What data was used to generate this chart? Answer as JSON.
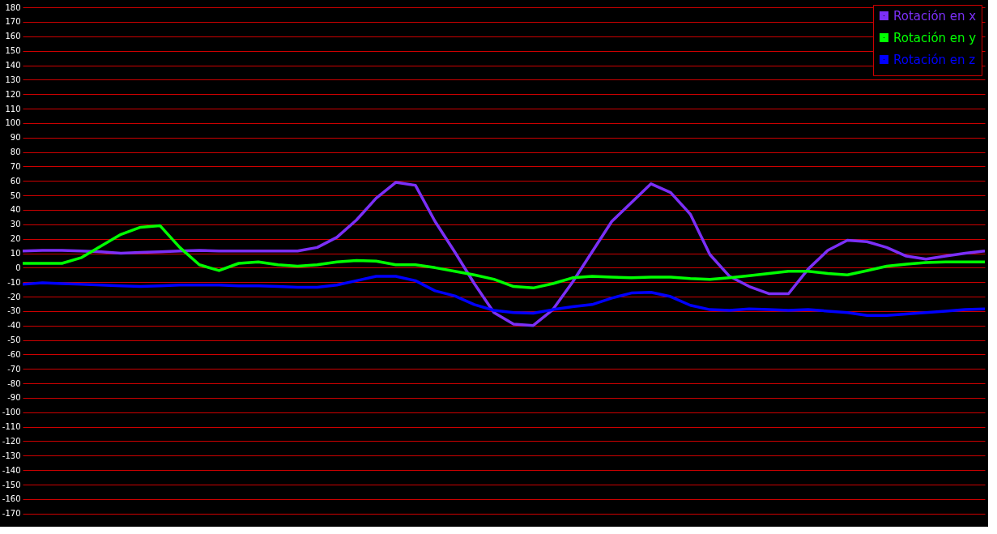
{
  "chart_data": {
    "type": "line",
    "ylim": [
      -178,
      184
    ],
    "categories": [
      null,
      null,
      null,
      null,
      null,
      null,
      null,
      null,
      null,
      null,
      null,
      null,
      null,
      null,
      null,
      null,
      null,
      null,
      null,
      null,
      null,
      null,
      null,
      null,
      null,
      null,
      null,
      null,
      null,
      null,
      null,
      null,
      null,
      null,
      null,
      null,
      null,
      null,
      null,
      null,
      null,
      null,
      null,
      null,
      null,
      null,
      null,
      null,
      null,
      null
    ],
    "yticks": [
      -170,
      -160,
      -150,
      -140,
      -130,
      -120,
      -110,
      -100,
      -90,
      -80,
      -70,
      -60,
      -50,
      -40,
      -30,
      -20,
      -10,
      0,
      10,
      20,
      30,
      40,
      50,
      60,
      70,
      80,
      90,
      100,
      110,
      120,
      130,
      140,
      150,
      160,
      170,
      180
    ],
    "tick_labels": "y",
    "grid": "y",
    "legend": "top right",
    "line_style": "solid",
    "series": [
      {
        "name": "Rotación en x",
        "color": "#7b2ff7",
        "values": [
          11.5,
          12,
          12,
          11.5,
          11,
          10,
          10.5,
          11,
          11.5,
          12,
          11.5,
          11.5,
          11.5,
          11.5,
          11.5,
          14,
          21,
          33,
          48,
          59,
          57,
          32,
          11,
          -11,
          -31,
          -39,
          -40,
          -29,
          -10,
          11,
          32,
          45,
          58,
          52,
          37,
          9,
          -6,
          -13,
          -18,
          -18,
          -1,
          12,
          19,
          18,
          14,
          8,
          6,
          8,
          10,
          11.5
        ]
      },
      {
        "name": "Rotación en y",
        "color": "#00ff00",
        "values": [
          3,
          3,
          3,
          7,
          15,
          23,
          28,
          29,
          14,
          2,
          -2,
          3,
          4,
          2,
          1,
          2,
          4,
          5,
          4.5,
          2,
          2,
          0,
          -2.5,
          -5,
          -8,
          -13,
          -14,
          -11,
          -7,
          -6,
          -6.5,
          -7,
          -6.5,
          -6.5,
          -7.5,
          -8,
          -7,
          -5.5,
          -4,
          -2.5,
          -2.5,
          -4,
          -5,
          -2,
          1,
          2.5,
          3.5,
          4,
          4,
          4
        ]
      },
      {
        "name": "Rotación en z",
        "color": "#0000ff",
        "values": [
          -11.5,
          -10.5,
          -11,
          -11.5,
          -12,
          -12.5,
          -13,
          -12.5,
          -12,
          -12,
          -12,
          -12.5,
          -12.5,
          -13,
          -13.5,
          -13.5,
          -12,
          -9,
          -6,
          -6,
          -9,
          -16,
          -19.5,
          -25.5,
          -29.5,
          -31,
          -31.5,
          -29,
          -27,
          -25.5,
          -21,
          -17.5,
          -17,
          -20,
          -26,
          -29,
          -29.5,
          -28.5,
          -29,
          -29.5,
          -29,
          -30,
          -31,
          -33,
          -33,
          -32,
          -31,
          -30,
          -29,
          -28.5
        ]
      }
    ]
  }
}
